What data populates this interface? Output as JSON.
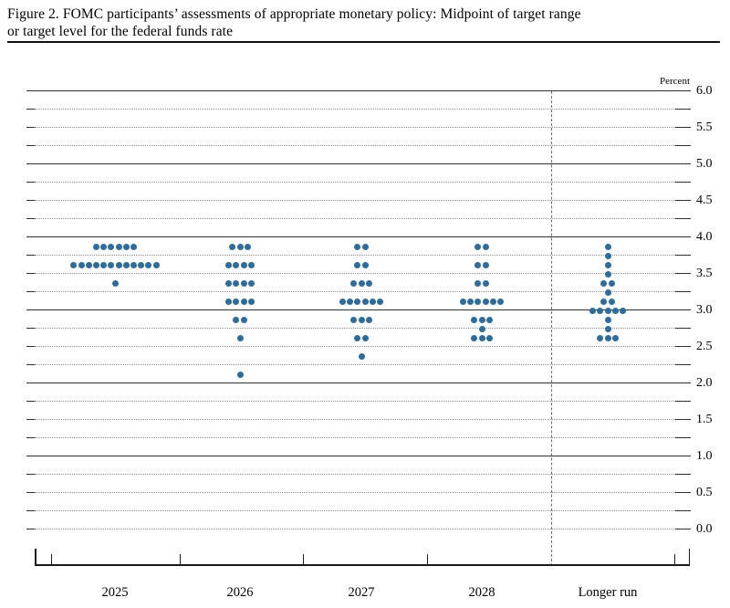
{
  "header": {
    "title_line1": "Figure 2. FOMC participants’ assessments of appropriate monetary policy: Midpoint of target range",
    "title_line2": "or target level for the federal funds rate"
  },
  "chart_data": {
    "type": "scatter",
    "subtype": "fomc-dot-plot",
    "title": "FOMC participants’ assessments of appropriate monetary policy: Midpoint of target range or target level for the federal funds rate",
    "unit_label": "Percent",
    "ylim": [
      0.0,
      6.0
    ],
    "ytick_label_step": 0.5,
    "gridline_step": 0.25,
    "solid_gridlines_at": [
      1.0,
      2.0,
      3.0,
      4.0,
      5.0,
      6.0
    ],
    "ytick_labels": [
      "6.0",
      "5.5",
      "5.0",
      "4.5",
      "4.0",
      "3.5",
      "3.0",
      "2.5",
      "2.0",
      "1.5",
      "1.0",
      "0.5",
      "0.0"
    ],
    "categories": [
      "2025",
      "2026",
      "2027",
      "2028",
      "Longer run"
    ],
    "columns": [
      {
        "label": "2025",
        "dots": [
          {
            "rate": 3.875,
            "count": 6
          },
          {
            "rate": 3.625,
            "count": 12
          },
          {
            "rate": 3.375,
            "count": 1
          }
        ]
      },
      {
        "label": "2026",
        "dots": [
          {
            "rate": 3.875,
            "count": 3
          },
          {
            "rate": 3.625,
            "count": 4
          },
          {
            "rate": 3.375,
            "count": 4
          },
          {
            "rate": 3.125,
            "count": 4
          },
          {
            "rate": 2.875,
            "count": 2
          },
          {
            "rate": 2.625,
            "count": 1
          },
          {
            "rate": 2.125,
            "count": 1
          }
        ]
      },
      {
        "label": "2027",
        "dots": [
          {
            "rate": 3.875,
            "count": 2
          },
          {
            "rate": 3.625,
            "count": 2
          },
          {
            "rate": 3.375,
            "count": 3
          },
          {
            "rate": 3.125,
            "count": 6
          },
          {
            "rate": 2.875,
            "count": 3
          },
          {
            "rate": 2.625,
            "count": 2
          },
          {
            "rate": 2.375,
            "count": 1
          }
        ]
      },
      {
        "label": "2028",
        "dots": [
          {
            "rate": 3.875,
            "count": 2
          },
          {
            "rate": 3.625,
            "count": 2
          },
          {
            "rate": 3.375,
            "count": 2
          },
          {
            "rate": 3.125,
            "count": 6
          },
          {
            "rate": 2.875,
            "count": 3
          },
          {
            "rate": 2.75,
            "count": 1
          },
          {
            "rate": 2.625,
            "count": 3
          }
        ]
      },
      {
        "label": "Longer run",
        "dots": [
          {
            "rate": 3.875,
            "count": 1
          },
          {
            "rate": 3.75,
            "count": 1
          },
          {
            "rate": 3.625,
            "count": 1
          },
          {
            "rate": 3.5,
            "count": 1
          },
          {
            "rate": 3.375,
            "count": 2
          },
          {
            "rate": 3.25,
            "count": 1
          },
          {
            "rate": 3.125,
            "count": 2
          },
          {
            "rate": 3.0,
            "count": 5
          },
          {
            "rate": 2.875,
            "count": 1
          },
          {
            "rate": 2.75,
            "count": 1
          },
          {
            "rate": 2.625,
            "count": 3
          }
        ]
      }
    ],
    "colors": {
      "dot": "#2b6d9e",
      "solid_grid": "#2f2f2f",
      "dotted_grid": "#8f8f8f",
      "axis": "#1a1a1a",
      "text": "#000000"
    },
    "legend": null,
    "grid": true
  }
}
